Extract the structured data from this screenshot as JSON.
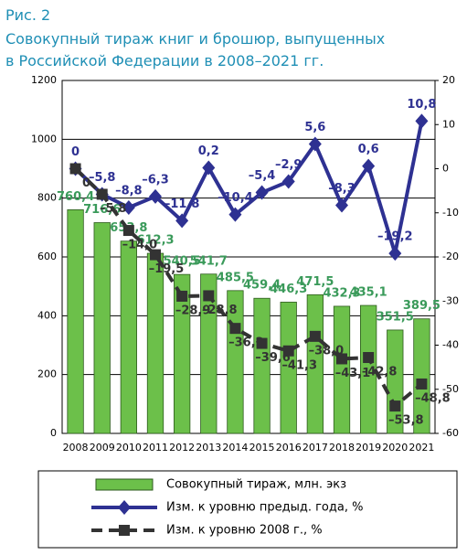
{
  "chart_data": {
    "type": "bar_line",
    "label": "Рис. 2",
    "title": [
      "Совокупный тираж книг и брошюр, выпущенных",
      "в Российской Федерации в 2008–2021 гг."
    ],
    "categories": [
      "2008",
      "2009",
      "2010",
      "2011",
      "2012",
      "2013",
      "2014",
      "2015",
      "2016",
      "2017",
      "2018",
      "2019",
      "2020",
      "2021"
    ],
    "series": [
      {
        "name": "Совокупный тираж, млн. экз",
        "type": "bar",
        "color": "#6cc04a",
        "label_color": "#3a9a5a",
        "values": [
          760.4,
          716.6,
          653.8,
          612.3,
          540.5,
          541.7,
          485.5,
          459.4,
          446.3,
          471.5,
          432.3,
          435.1,
          351.5,
          389.5
        ],
        "value_labels": [
          "760,4",
          "716,6",
          "653,8",
          "612,3",
          "540,5",
          "541,7",
          "485,5",
          "459,4",
          "446,3",
          "471,5",
          "432,3",
          "435,1",
          "351,5",
          "389,5"
        ]
      },
      {
        "name": "Изм. к уровню предыд. года, %",
        "type": "line",
        "axis": "y2",
        "color": "#2e3192",
        "marker": "diamond",
        "values": [
          0,
          -5.8,
          -8.8,
          -6.3,
          -11.8,
          0.2,
          -10.4,
          -5.4,
          -2.9,
          5.6,
          -8.3,
          0.6,
          -19.2,
          10.8
        ],
        "value_labels": [
          "0",
          "–5,8",
          "–8,8",
          "–6,3",
          "–11,8",
          "0,2",
          "–10,4",
          "–5,4",
          "–2,9",
          "5,6",
          "–8,3",
          "0,6",
          "–19,2",
          "10,8"
        ]
      },
      {
        "name": "Изм. к уровню 2008 г., %",
        "type": "line",
        "axis": "y2",
        "color": "#333333",
        "marker": "square",
        "dashed": true,
        "values": [
          0,
          -5.8,
          -14.0,
          -19.5,
          -28.9,
          -28.8,
          -36.2,
          -39.6,
          -41.3,
          -38.0,
          -43.1,
          -42.8,
          -53.8,
          -48.8
        ],
        "value_labels": [
          "0",
          "–5,8",
          "–14,0",
          "–19,5",
          "–28,9",
          "–28,8",
          "–36,2",
          "–39,6",
          "–41,3",
          "–38,0",
          "–43,1",
          "–42,8",
          "–53,8",
          "–48,8"
        ]
      }
    ],
    "ylim": [
      0,
      1200
    ],
    "yticks": [
      0,
      200,
      400,
      600,
      800,
      1000,
      1200
    ],
    "y2lim": [
      -60,
      20
    ],
    "y2ticks": [
      -60,
      -50,
      -40,
      -30,
      -20,
      -10,
      0,
      10,
      20
    ],
    "grid": true
  }
}
